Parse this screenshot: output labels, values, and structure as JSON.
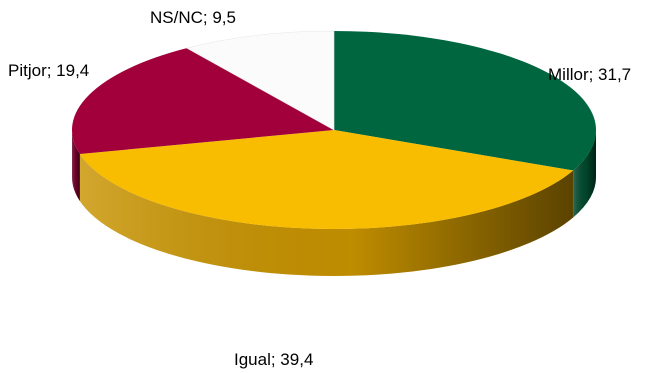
{
  "chart_data": {
    "type": "pie",
    "style": "3d",
    "title": "",
    "slices": [
      {
        "label": "Millor",
        "value": 31.7,
        "display": "Millor; 31,7",
        "color": "#00663f",
        "side_color": "#004a2d"
      },
      {
        "label": "Igual",
        "value": 39.4,
        "display": "Igual; 39,4",
        "color": "#f8bd00",
        "side_color": "#c99400"
      },
      {
        "label": "Pitjor",
        "value": 19.4,
        "display": "Pitjor; 19,4",
        "color": "#a1003a",
        "side_color": "#6e0028"
      },
      {
        "label": "NS/NC",
        "value": 9.5,
        "display": "NS/NC; 9,5",
        "color": "#fbfbfb",
        "side_color": "#bdbdbd"
      }
    ]
  }
}
